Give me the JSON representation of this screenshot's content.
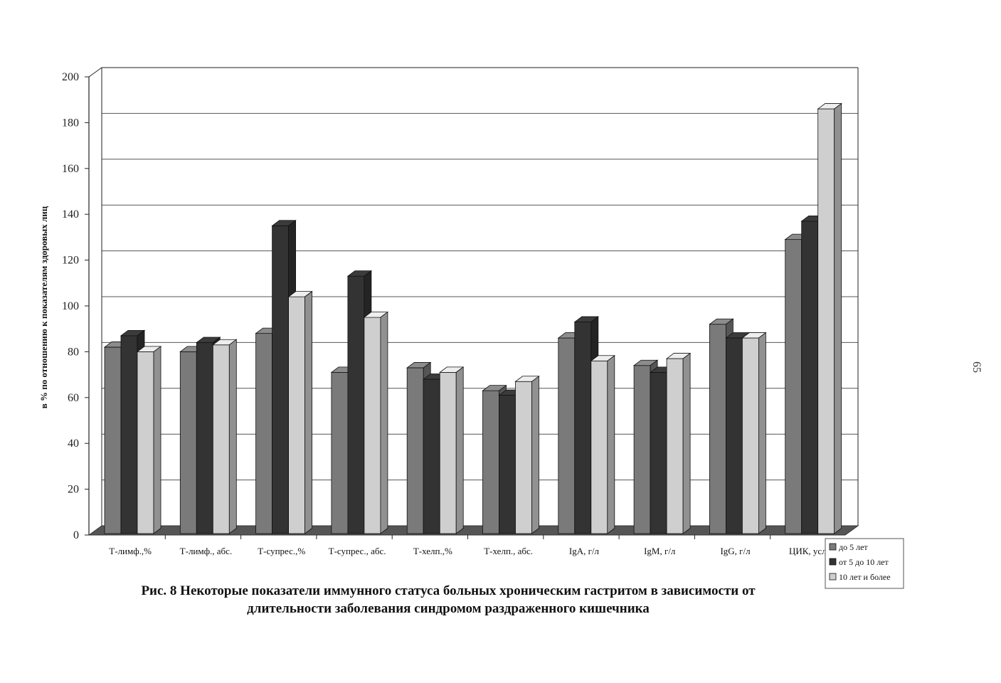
{
  "page_number": "65",
  "caption": {
    "line1": "Рис. 8 Некоторые показатели иммунного статуса больных хроническим гастритом в зависимости от",
    "line2": "длительности заболевания синдромом раздраженного кишечника"
  },
  "colors": {
    "series1": "#7a7a7a",
    "series2": "#333333",
    "series3": "#cfcfcf",
    "floor": "#555555",
    "grid": "#555555"
  },
  "chart_data": {
    "type": "bar",
    "title": "",
    "xlabel": "",
    "ylabel": "в % по отношению к показателям здоровых лиц",
    "ylim": [
      0,
      200
    ],
    "yticks": [
      0,
      20,
      40,
      60,
      80,
      100,
      120,
      140,
      160,
      180,
      200
    ],
    "grid": true,
    "legend_position": "bottom-right",
    "categories": [
      "Т-лимф.,%",
      "Т-лимф., абс.",
      "Т-супрес.,%",
      "Т-супрес., абс.",
      "Т-хелп.,%",
      "Т-хелп., абс.",
      "IgA, г/л",
      "IgM, г/л",
      "IgG, г/л",
      "ЦИК, усл.е"
    ],
    "series": [
      {
        "name": "до 5 лет",
        "values": [
          82,
          80,
          88,
          71,
          73,
          63,
          86,
          74,
          92,
          129
        ]
      },
      {
        "name": "от 5 до 10 лет",
        "values": [
          87,
          84,
          135,
          113,
          68,
          61,
          93,
          71,
          86,
          137
        ]
      },
      {
        "name": "10 лет и более",
        "values": [
          80,
          83,
          104,
          95,
          71,
          67,
          76,
          77,
          86,
          186
        ]
      }
    ]
  }
}
